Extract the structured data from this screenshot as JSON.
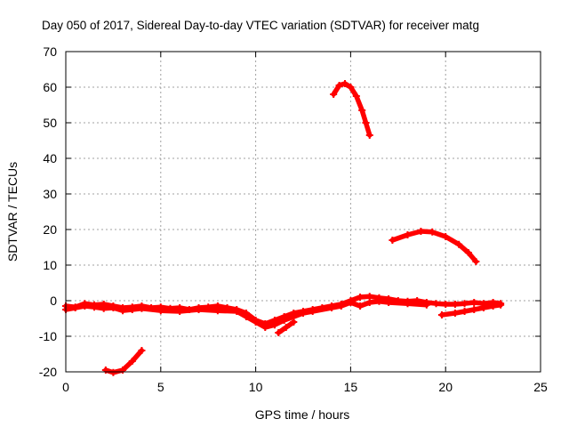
{
  "chart_data": {
    "type": "scatter",
    "title": "Day 050 of 2017, Sidereal Day-to-day VTEC variation (SDTVAR) for receiver matg",
    "xlabel": "GPS time / hours",
    "ylabel": "SDTVAR / TECUs",
    "xlim": [
      0,
      25
    ],
    "ylim": [
      -20,
      70
    ],
    "xticks": [
      0,
      5,
      10,
      15,
      20,
      25
    ],
    "yticks": [
      -20,
      -10,
      0,
      10,
      20,
      30,
      40,
      50,
      60,
      70
    ],
    "xtick_labels": [
      "0",
      "5",
      "10",
      "15",
      "20",
      "25"
    ],
    "ytick_labels": [
      "-20",
      "-10",
      "0",
      "10",
      "20",
      "30",
      "40",
      "50",
      "60",
      "70"
    ],
    "grid": true,
    "marker": "plus",
    "color": "#ff0000",
    "series": [
      {
        "name": "arc-baseline-main",
        "points": [
          [
            0.0,
            -1.5
          ],
          [
            0.5,
            -1.8
          ],
          [
            1.0,
            -0.8
          ],
          [
            1.5,
            -1.2
          ],
          [
            2.0,
            -1.0
          ],
          [
            2.5,
            -1.5
          ],
          [
            3.0,
            -2.0
          ],
          [
            3.5,
            -1.8
          ],
          [
            4.0,
            -1.5
          ],
          [
            4.5,
            -2.0
          ],
          [
            5.0,
            -1.8
          ],
          [
            5.5,
            -2.2
          ],
          [
            6.0,
            -2.0
          ],
          [
            6.5,
            -2.5
          ],
          [
            7.0,
            -2.0
          ],
          [
            7.5,
            -1.8
          ],
          [
            8.0,
            -1.5
          ],
          [
            8.5,
            -2.0
          ],
          [
            9.0,
            -2.5
          ],
          [
            9.5,
            -3.5
          ],
          [
            10.0,
            -5.5
          ],
          [
            10.5,
            -6.5
          ],
          [
            11.0,
            -5.5
          ],
          [
            11.5,
            -4.5
          ],
          [
            12.0,
            -3.5
          ],
          [
            12.5,
            -3.0
          ],
          [
            13.0,
            -2.5
          ],
          [
            13.5,
            -2.0
          ],
          [
            14.0,
            -1.5
          ],
          [
            14.5,
            -1.0
          ],
          [
            15.0,
            0.0
          ],
          [
            15.5,
            1.0
          ],
          [
            16.0,
            1.2
          ],
          [
            16.5,
            0.8
          ],
          [
            17.0,
            0.5
          ],
          [
            17.5,
            0.0
          ],
          [
            18.0,
            -0.2
          ],
          [
            18.5,
            0.0
          ],
          [
            19.0,
            -0.5
          ],
          [
            19.5,
            -0.8
          ],
          [
            20.0,
            -1.0
          ],
          [
            20.5,
            -1.0
          ],
          [
            21.0,
            -0.8
          ],
          [
            21.5,
            -0.5
          ],
          [
            22.0,
            -0.8
          ],
          [
            22.5,
            -0.5
          ],
          [
            22.9,
            -0.8
          ]
        ]
      },
      {
        "name": "arc-baseline-second",
        "points": [
          [
            0.0,
            -2.5
          ],
          [
            0.5,
            -2.0
          ],
          [
            1.0,
            -1.5
          ],
          [
            1.5,
            -1.8
          ],
          [
            2.0,
            -2.2
          ],
          [
            2.5,
            -2.0
          ],
          [
            3.0,
            -2.8
          ],
          [
            3.5,
            -2.5
          ],
          [
            4.0,
            -2.2
          ],
          [
            5.0,
            -2.8
          ],
          [
            6.0,
            -3.0
          ],
          [
            7.0,
            -2.5
          ],
          [
            8.0,
            -2.8
          ],
          [
            9.0,
            -3.0
          ],
          [
            9.5,
            -4.5
          ],
          [
            10.0,
            -6.0
          ],
          [
            10.5,
            -7.5
          ],
          [
            11.0,
            -6.8
          ],
          [
            11.5,
            -5.5
          ],
          [
            12.0,
            -4.5
          ],
          [
            12.5,
            -3.5
          ],
          [
            13.0,
            -3.0
          ],
          [
            14.0,
            -2.0
          ],
          [
            14.5,
            -1.5
          ],
          [
            15.0,
            -0.5
          ],
          [
            15.5,
            -1.5
          ],
          [
            16.0,
            -0.5
          ],
          [
            16.5,
            -0.2
          ],
          [
            17.0,
            -0.5
          ],
          [
            18.0,
            -0.8
          ],
          [
            19.0,
            -1.2
          ]
        ]
      },
      {
        "name": "arc-late-low",
        "points": [
          [
            19.8,
            -4.0
          ],
          [
            20.5,
            -3.5
          ],
          [
            21.0,
            -3.0
          ],
          [
            21.5,
            -2.5
          ],
          [
            22.0,
            -2.0
          ],
          [
            22.5,
            -1.5
          ],
          [
            22.9,
            -1.2
          ]
        ]
      },
      {
        "name": "arc-dip-11h",
        "points": [
          [
            11.2,
            -9.0
          ],
          [
            11.6,
            -7.5
          ],
          [
            12.0,
            -6.0
          ]
        ]
      },
      {
        "name": "arc-early-low",
        "points": [
          [
            2.1,
            -19.5
          ],
          [
            2.5,
            -20.2
          ],
          [
            3.0,
            -19.5
          ],
          [
            3.5,
            -17.0
          ],
          [
            4.0,
            -14.0
          ]
        ]
      },
      {
        "name": "arc-peak-15h",
        "points": [
          [
            14.1,
            58.0
          ],
          [
            14.4,
            60.5
          ],
          [
            14.7,
            61.0
          ],
          [
            15.0,
            60.0
          ],
          [
            15.3,
            57.5
          ],
          [
            15.6,
            53.5
          ],
          [
            15.8,
            50.0
          ],
          [
            16.0,
            46.5
          ]
        ]
      },
      {
        "name": "arc-mid-20",
        "points": [
          [
            17.2,
            17.0
          ],
          [
            18.0,
            18.5
          ],
          [
            18.7,
            19.5
          ],
          [
            19.3,
            19.3
          ],
          [
            20.0,
            18.0
          ],
          [
            20.7,
            15.8
          ],
          [
            21.2,
            13.5
          ],
          [
            21.6,
            11.0
          ]
        ]
      }
    ]
  }
}
